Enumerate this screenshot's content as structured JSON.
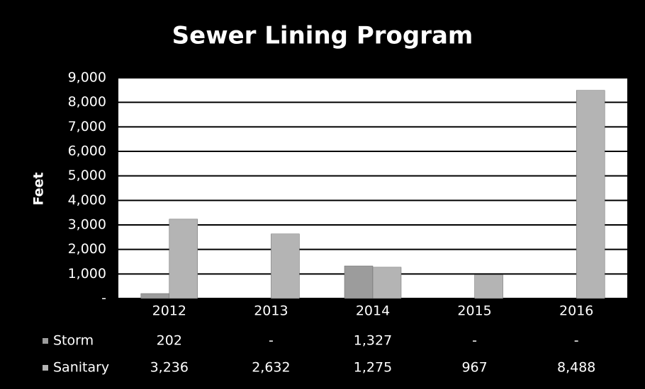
{
  "chart_data": {
    "type": "bar",
    "title": "Sewer Lining Program",
    "y_label": "Feet",
    "categories": [
      "2012",
      "2013",
      "2014",
      "2015",
      "2016"
    ],
    "series": [
      {
        "name": "Storm",
        "color": "#9c9c9c",
        "values": [
          202,
          0,
          1327,
          0,
          0
        ],
        "value_labels": [
          "202",
          "-",
          "1,327",
          "-",
          "-"
        ]
      },
      {
        "name": "Sanitary",
        "color": "#b4b4b4",
        "values": [
          3236,
          2632,
          1275,
          967,
          8488
        ],
        "value_labels": [
          "3,236",
          "2,632",
          "1,275",
          "967",
          "8,488"
        ]
      }
    ],
    "ylim": [
      0,
      9000
    ],
    "yticks": [
      {
        "value": 0,
        "label": "-"
      },
      {
        "value": 1000,
        "label": "1,000"
      },
      {
        "value": 2000,
        "label": "2,000"
      },
      {
        "value": 3000,
        "label": "3,000"
      },
      {
        "value": 4000,
        "label": "4,000"
      },
      {
        "value": 5000,
        "label": "5,000"
      },
      {
        "value": 6000,
        "label": "6,000"
      },
      {
        "value": 7000,
        "label": "7,000"
      },
      {
        "value": 8000,
        "label": "8,000"
      },
      {
        "value": 9000,
        "label": "9,000"
      }
    ],
    "grid": true
  }
}
